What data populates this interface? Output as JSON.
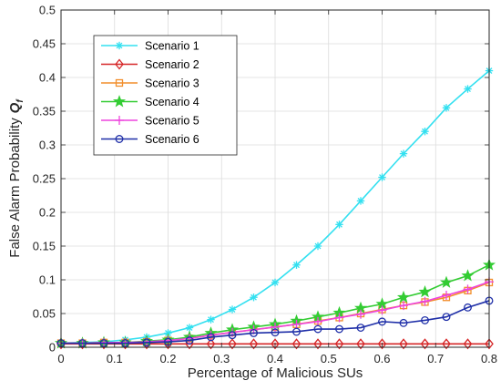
{
  "chart_data": {
    "type": "line",
    "xlabel": "Percentage of Malicious SUs",
    "ylabel": "False Alarm Probability",
    "ylabel_symbol": "Q",
    "ylabel_subscript": "f",
    "xlim": [
      0,
      0.8
    ],
    "ylim": [
      0,
      0.5
    ],
    "xticks": [
      0,
      0.1,
      0.2,
      0.3,
      0.4,
      0.5,
      0.6,
      0.7,
      0.8
    ],
    "xtick_labels": [
      "0",
      "0.1",
      "0.2",
      "0.3",
      "0.4",
      "0.5",
      "0.6",
      "0.7",
      "0.8"
    ],
    "yticks": [
      0,
      0.05,
      0.1,
      0.15,
      0.2,
      0.25,
      0.3,
      0.35,
      0.4,
      0.45,
      0.5
    ],
    "ytick_labels": [
      "0",
      "0.05",
      "0.1",
      "0.15",
      "0.2",
      "0.25",
      "0.3",
      "0.35",
      "0.4",
      "0.45",
      "0.5"
    ],
    "grid": true,
    "legend_position": "top-left",
    "x": [
      0,
      0.04,
      0.08,
      0.12,
      0.16,
      0.2,
      0.24,
      0.28,
      0.32,
      0.36,
      0.4,
      0.44,
      0.48,
      0.52,
      0.56,
      0.6,
      0.64,
      0.68,
      0.72,
      0.76,
      0.8
    ],
    "series": [
      {
        "name": "Scenario 1",
        "color": "#33e0f0",
        "marker": "asterisk",
        "values": [
          0.006,
          0.007,
          0.008,
          0.011,
          0.015,
          0.021,
          0.029,
          0.041,
          0.056,
          0.074,
          0.096,
          0.122,
          0.15,
          0.182,
          0.217,
          0.252,
          0.287,
          0.32,
          0.355,
          0.383,
          0.41
        ]
      },
      {
        "name": "Scenario 2",
        "color": "#d62728",
        "marker": "diamond",
        "values": [
          0.005,
          0.005,
          0.005,
          0.005,
          0.005,
          0.005,
          0.005,
          0.005,
          0.005,
          0.005,
          0.005,
          0.005,
          0.005,
          0.005,
          0.005,
          0.005,
          0.005,
          0.005,
          0.005,
          0.005,
          0.005
        ]
      },
      {
        "name": "Scenario 3",
        "color": "#f28e2b",
        "marker": "square",
        "values": [
          0.006,
          0.006,
          0.007,
          0.007,
          0.008,
          0.01,
          0.013,
          0.018,
          0.022,
          0.026,
          0.03,
          0.034,
          0.039,
          0.044,
          0.05,
          0.056,
          0.062,
          0.067,
          0.074,
          0.084,
          0.096
        ]
      },
      {
        "name": "Scenario 4",
        "color": "#33cc33",
        "marker": "pentagram",
        "values": [
          0.006,
          0.006,
          0.007,
          0.007,
          0.009,
          0.011,
          0.015,
          0.021,
          0.026,
          0.03,
          0.034,
          0.039,
          0.045,
          0.051,
          0.058,
          0.064,
          0.074,
          0.082,
          0.096,
          0.106,
          0.122
        ]
      },
      {
        "name": "Scenario 5",
        "color": "#ee44dd",
        "marker": "plus",
        "values": [
          0.006,
          0.006,
          0.007,
          0.007,
          0.008,
          0.01,
          0.013,
          0.018,
          0.022,
          0.026,
          0.03,
          0.034,
          0.038,
          0.044,
          0.049,
          0.055,
          0.062,
          0.068,
          0.077,
          0.086,
          0.097
        ]
      },
      {
        "name": "Scenario 6",
        "color": "#1f2fa8",
        "marker": "circle",
        "values": [
          0.006,
          0.006,
          0.006,
          0.006,
          0.007,
          0.008,
          0.01,
          0.015,
          0.018,
          0.021,
          0.022,
          0.023,
          0.027,
          0.027,
          0.029,
          0.038,
          0.036,
          0.04,
          0.045,
          0.059,
          0.069
        ]
      }
    ]
  }
}
